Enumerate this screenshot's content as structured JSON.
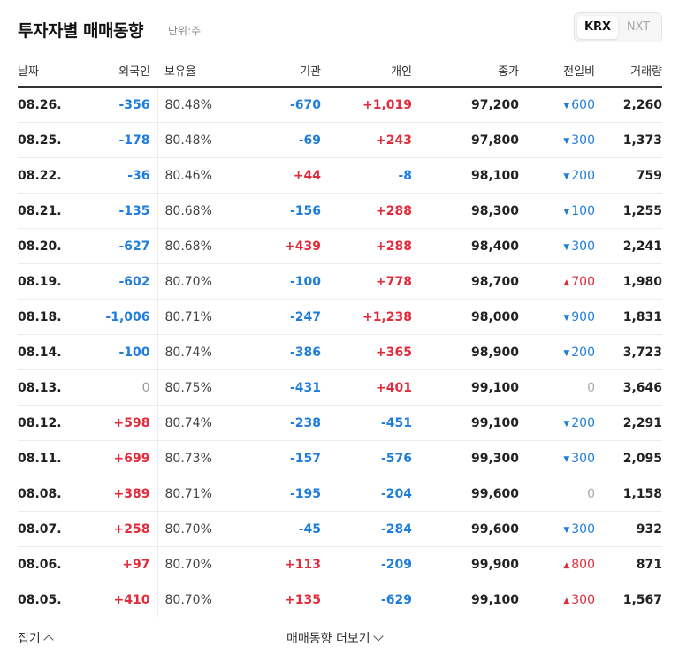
{
  "header": {
    "title": "투자자별 매매동향",
    "unit": "단위:주",
    "toggle": [
      "KRX",
      "NXT"
    ],
    "toggle_selected": "KRX"
  },
  "columns": [
    "날짜",
    "외국인",
    "보유율",
    "기관",
    "개인",
    "종가",
    "전일비",
    "거래량"
  ],
  "rows": [
    {
      "date": "08.26.",
      "foreign": "-356",
      "ratio": "80.48%",
      "inst": "-670",
      "indiv": "+1,019",
      "close": "97,200",
      "change": "600",
      "dir": "down",
      "volume": "2,260"
    },
    {
      "date": "08.25.",
      "foreign": "-178",
      "ratio": "80.48%",
      "inst": "-69",
      "indiv": "+243",
      "close": "97,800",
      "change": "300",
      "dir": "down",
      "volume": "1,373"
    },
    {
      "date": "08.22.",
      "foreign": "-36",
      "ratio": "80.46%",
      "inst": "+44",
      "indiv": "-8",
      "close": "98,100",
      "change": "200",
      "dir": "down",
      "volume": "759"
    },
    {
      "date": "08.21.",
      "foreign": "-135",
      "ratio": "80.68%",
      "inst": "-156",
      "indiv": "+288",
      "close": "98,300",
      "change": "100",
      "dir": "down",
      "volume": "1,255"
    },
    {
      "date": "08.20.",
      "foreign": "-627",
      "ratio": "80.68%",
      "inst": "+439",
      "indiv": "+288",
      "close": "98,400",
      "change": "300",
      "dir": "down",
      "volume": "2,241"
    },
    {
      "date": "08.19.",
      "foreign": "-602",
      "ratio": "80.70%",
      "inst": "-100",
      "indiv": "+778",
      "close": "98,700",
      "change": "700",
      "dir": "up",
      "volume": "1,980"
    },
    {
      "date": "08.18.",
      "foreign": "-1,006",
      "ratio": "80.71%",
      "inst": "-247",
      "indiv": "+1,238",
      "close": "98,000",
      "change": "900",
      "dir": "down",
      "volume": "1,831"
    },
    {
      "date": "08.14.",
      "foreign": "-100",
      "ratio": "80.74%",
      "inst": "-386",
      "indiv": "+365",
      "close": "98,900",
      "change": "200",
      "dir": "down",
      "volume": "3,723"
    },
    {
      "date": "08.13.",
      "foreign": "0",
      "ratio": "80.75%",
      "inst": "-431",
      "indiv": "+401",
      "close": "99,100",
      "change": "0",
      "dir": "none",
      "volume": "3,646"
    },
    {
      "date": "08.12.",
      "foreign": "+598",
      "ratio": "80.74%",
      "inst": "-238",
      "indiv": "-451",
      "close": "99,100",
      "change": "200",
      "dir": "down",
      "volume": "2,291"
    },
    {
      "date": "08.11.",
      "foreign": "+699",
      "ratio": "80.73%",
      "inst": "-157",
      "indiv": "-576",
      "close": "99,300",
      "change": "300",
      "dir": "down",
      "volume": "2,095"
    },
    {
      "date": "08.08.",
      "foreign": "+389",
      "ratio": "80.71%",
      "inst": "-195",
      "indiv": "-204",
      "close": "99,600",
      "change": "0",
      "dir": "none",
      "volume": "1,158"
    },
    {
      "date": "08.07.",
      "foreign": "+258",
      "ratio": "80.70%",
      "inst": "-45",
      "indiv": "-284",
      "close": "99,600",
      "change": "300",
      "dir": "down",
      "volume": "932"
    },
    {
      "date": "08.06.",
      "foreign": "+97",
      "ratio": "80.70%",
      "inst": "+113",
      "indiv": "-209",
      "close": "99,900",
      "change": "800",
      "dir": "up",
      "volume": "871"
    },
    {
      "date": "08.05.",
      "foreign": "+410",
      "ratio": "80.70%",
      "inst": "+135",
      "indiv": "-629",
      "close": "99,100",
      "change": "300",
      "dir": "up",
      "volume": "1,567"
    }
  ],
  "footer": {
    "fold_label": "접기",
    "more_label": "매매동향 더보기"
  },
  "colors": {
    "up": "#e22b3b",
    "down": "#1f7ddc",
    "zero": "#999999"
  }
}
